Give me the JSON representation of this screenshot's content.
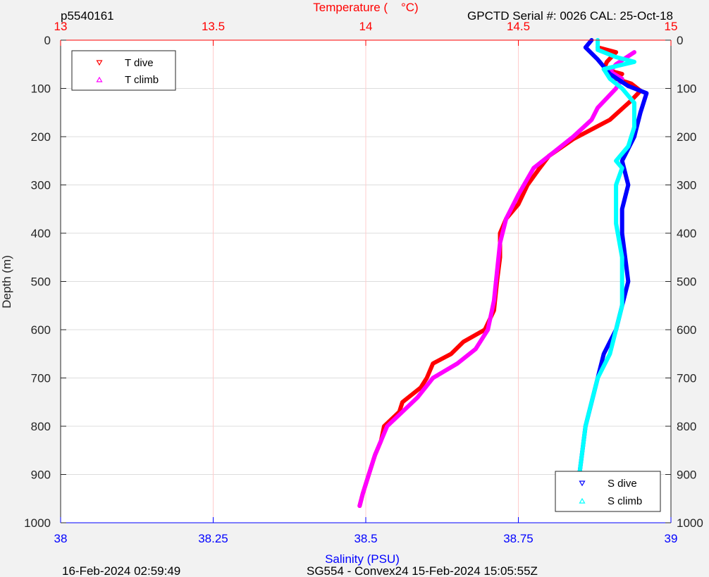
{
  "header": {
    "left_id": "p5540161",
    "sensor": "GPCTD Serial #: 0026 CAL: 25-Oct-18"
  },
  "footer": {
    "date": "16-Feb-2024 02:59:49",
    "mission": "SG554 - Convex24 15-Feb-2024 15:05:55Z"
  },
  "colors": {
    "temperature_axis": "#ff0000",
    "salinity_axis": "#0000ff",
    "t_dive": "#ff0000",
    "t_climb": "#ff00ff",
    "s_dive": "#0000ff",
    "s_climb": "#00ffff",
    "grid": "#dddddd",
    "temperature_grid": "#ffcccc"
  },
  "chart_data": {
    "type": "line",
    "title": "",
    "top_axis": {
      "label": "Temperature (    °C)",
      "range": [
        13,
        15
      ],
      "ticks": [
        "13",
        "13.5",
        "14",
        "14.5",
        "15"
      ]
    },
    "bottom_axis": {
      "label": "Salinity (PSU)",
      "range": [
        38,
        39
      ],
      "ticks": [
        "38",
        "38.25",
        "38.5",
        "38.75",
        "39"
      ]
    },
    "y_axis": {
      "label": "Depth (m)",
      "range": [
        0,
        1000
      ],
      "reversed": true,
      "ticks": [
        "0",
        "100",
        "200",
        "300",
        "400",
        "500",
        "600",
        "700",
        "800",
        "900",
        "1000"
      ]
    },
    "grid": true,
    "legend_temperature": {
      "position": "top-left",
      "entries": [
        "T dive",
        "T climb"
      ]
    },
    "legend_salinity": {
      "position": "bottom-right",
      "entries": [
        "S dive",
        "S climb"
      ]
    },
    "series": [
      {
        "name": "T dive",
        "axis": "temperature",
        "marker": "triangle-down",
        "points": [
          [
            14.76,
            15
          ],
          [
            14.82,
            25
          ],
          [
            14.79,
            45
          ],
          [
            14.78,
            60
          ],
          [
            14.84,
            70
          ],
          [
            14.82,
            80
          ],
          [
            14.87,
            90
          ],
          [
            14.9,
            105
          ],
          [
            14.87,
            125
          ],
          [
            14.8,
            165
          ],
          [
            14.74,
            185
          ],
          [
            14.68,
            205
          ],
          [
            14.6,
            240
          ],
          [
            14.57,
            265
          ],
          [
            14.53,
            300
          ],
          [
            14.5,
            340
          ],
          [
            14.46,
            370
          ],
          [
            14.44,
            400
          ],
          [
            14.44,
            450
          ],
          [
            14.43,
            500
          ],
          [
            14.42,
            560
          ],
          [
            14.39,
            600
          ],
          [
            14.32,
            625
          ],
          [
            14.28,
            650
          ],
          [
            14.22,
            670
          ],
          [
            14.2,
            700
          ],
          [
            14.18,
            720
          ],
          [
            14.12,
            750
          ],
          [
            14.11,
            770
          ],
          [
            14.06,
            800
          ],
          [
            14.05,
            830
          ],
          [
            14.03,
            860
          ],
          [
            14.01,
            900
          ],
          [
            13.99,
            940
          ],
          [
            13.98,
            965
          ]
        ]
      },
      {
        "name": "T climb",
        "axis": "temperature",
        "marker": "triangle-up",
        "points": [
          [
            14.88,
            25
          ],
          [
            14.82,
            50
          ],
          [
            14.8,
            65
          ],
          [
            14.84,
            80
          ],
          [
            14.82,
            100
          ],
          [
            14.76,
            140
          ],
          [
            14.74,
            165
          ],
          [
            14.68,
            200
          ],
          [
            14.62,
            230
          ],
          [
            14.55,
            265
          ],
          [
            14.5,
            320
          ],
          [
            14.46,
            370
          ],
          [
            14.44,
            420
          ],
          [
            14.43,
            480
          ],
          [
            14.42,
            540
          ],
          [
            14.4,
            600
          ],
          [
            14.36,
            640
          ],
          [
            14.3,
            670
          ],
          [
            14.22,
            700
          ],
          [
            14.17,
            740
          ],
          [
            14.12,
            770
          ],
          [
            14.07,
            800
          ],
          [
            14.05,
            830
          ],
          [
            14.03,
            860
          ],
          [
            14.01,
            900
          ],
          [
            13.99,
            940
          ],
          [
            13.98,
            965
          ]
        ]
      },
      {
        "name": "S dive",
        "axis": "salinity",
        "marker": "triangle-down",
        "points": [
          [
            38.87,
            0
          ],
          [
            38.86,
            15
          ],
          [
            38.88,
            40
          ],
          [
            38.9,
            70
          ],
          [
            38.93,
            95
          ],
          [
            38.96,
            110
          ],
          [
            38.95,
            150
          ],
          [
            38.94,
            200
          ],
          [
            38.92,
            250
          ],
          [
            38.93,
            300
          ],
          [
            38.92,
            350
          ],
          [
            38.92,
            400
          ],
          [
            38.93,
            500
          ],
          [
            38.92,
            550
          ],
          [
            38.91,
            600
          ],
          [
            38.89,
            650
          ],
          [
            38.88,
            700
          ],
          [
            38.86,
            800
          ],
          [
            38.85,
            900
          ],
          [
            38.85,
            965
          ]
        ]
      },
      {
        "name": "S climb",
        "axis": "salinity",
        "marker": "triangle-up",
        "points": [
          [
            38.88,
            0
          ],
          [
            38.88,
            20
          ],
          [
            38.91,
            35
          ],
          [
            38.94,
            45
          ],
          [
            38.89,
            60
          ],
          [
            38.9,
            80
          ],
          [
            38.92,
            100
          ],
          [
            38.94,
            130
          ],
          [
            38.94,
            180
          ],
          [
            38.93,
            220
          ],
          [
            38.91,
            250
          ],
          [
            38.92,
            265
          ],
          [
            38.91,
            300
          ],
          [
            38.91,
            380
          ],
          [
            38.92,
            450
          ],
          [
            38.92,
            550
          ],
          [
            38.91,
            600
          ],
          [
            38.9,
            650
          ],
          [
            38.88,
            700
          ],
          [
            38.87,
            750
          ],
          [
            38.86,
            800
          ],
          [
            38.85,
            900
          ],
          [
            38.85,
            965
          ]
        ]
      }
    ]
  }
}
